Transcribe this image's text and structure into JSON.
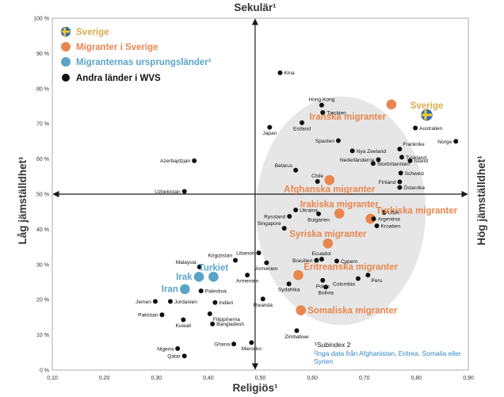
{
  "colors": {
    "sverige": "#d8ab4c",
    "migrants": "#e8864d",
    "origin": "#5ba4c8",
    "other": "#111111",
    "ellipse": "#e6e6e6",
    "axis": "#1a1a1a"
  },
  "legend": [
    {
      "label": "Sverige",
      "kind": "sverige",
      "color": "#d8ab4c"
    },
    {
      "label": "Migranter i Sverige",
      "kind": "migrant",
      "color": "#e8864d"
    },
    {
      "label": "Migranternas ursprungsländer²",
      "kind": "origin",
      "color": "#5ba4c8"
    },
    {
      "label": "Andra länder i WVS",
      "kind": "other",
      "color": "#111111"
    }
  ],
  "notes": {
    "subindex": "¹Subindex 2",
    "inga_data": "²Inga data från Afghanistan, Eritrea, Somalia eller Syrien"
  },
  "chart_data": {
    "type": "scatter",
    "title": "",
    "xlabel_top": "Sekulär¹",
    "xlabel_bottom": "Religiös¹",
    "ylabel_left": "Låg jämställdhet¹",
    "ylabel_right": "Hög jämställdhet¹",
    "xlim": [
      0.1,
      0.9
    ],
    "ylim": [
      0,
      100
    ],
    "x_ticks": [
      "0,10",
      "0,20",
      "0,30",
      "0,40",
      "0,50",
      "0,60",
      "0,70",
      "0,80",
      "0,90"
    ],
    "x_tick_values": [
      0.1,
      0.2,
      0.3,
      0.4,
      0.5,
      0.6,
      0.7,
      0.8,
      0.9
    ],
    "y_ticks": [
      "0 %",
      "10 %",
      "20 %",
      "30 %",
      "40 %",
      "50 %",
      "60 %",
      "70 %",
      "80 %",
      "90 %",
      "100 %"
    ],
    "y_tick_values": [
      0,
      10,
      20,
      30,
      40,
      50,
      60,
      70,
      80,
      90,
      100
    ],
    "axis_cross": {
      "x": 0.49,
      "y": 50
    },
    "series": [
      {
        "name": "Sverige",
        "points": [
          {
            "label": "Sverige",
            "x": 0.82,
            "y": 72.5,
            "label_pos": "above"
          }
        ]
      },
      {
        "name": "Migranter i Sverige",
        "points": [
          {
            "label": "Iranska migranter",
            "x": 0.752,
            "y": 75.5,
            "label_pos": "left-below"
          },
          {
            "label": "Afghanska migranter",
            "x": 0.633,
            "y": 54.0,
            "label_pos": "below"
          },
          {
            "label": "Irakiska migranter",
            "x": 0.652,
            "y": 44.5,
            "label_pos": "above"
          },
          {
            "label": "Turkiska migranter",
            "x": 0.712,
            "y": 43.0,
            "label_pos": "above-right"
          },
          {
            "label": "Syriska migranter",
            "x": 0.63,
            "y": 36.0,
            "label_pos": "above"
          },
          {
            "label": "Eritreanska migranter",
            "x": 0.573,
            "y": 27.0,
            "label_pos": "above-right"
          },
          {
            "label": "Somaliska migranter",
            "x": 0.578,
            "y": 17.0,
            "label_pos": "right"
          }
        ]
      },
      {
        "name": "Migranternas ursprungsländer",
        "points": [
          {
            "label": "Turkiet",
            "x": 0.41,
            "y": 26.5,
            "label_pos": "above"
          },
          {
            "label": "Irak",
            "x": 0.382,
            "y": 26.5,
            "label_pos": "left"
          },
          {
            "label": "Iran",
            "x": 0.355,
            "y": 23.0,
            "label_pos": "left"
          }
        ]
      },
      {
        "name": "Andra länder i WVS",
        "points": [
          {
            "label": "Kina",
            "x": 0.538,
            "y": 84.5,
            "label_pos": "right"
          },
          {
            "label": "Hong Kong",
            "x": 0.618,
            "y": 75.3,
            "label_pos": "above"
          },
          {
            "label": "Tjeckien",
            "x": 0.62,
            "y": 73.2,
            "label_pos": "right"
          },
          {
            "label": "Japan",
            "x": 0.518,
            "y": 69.0,
            "label_pos": "below"
          },
          {
            "label": "Estland",
            "x": 0.58,
            "y": 70.3,
            "label_pos": "below"
          },
          {
            "label": "Australien",
            "x": 0.798,
            "y": 68.8,
            "label_pos": "right"
          },
          {
            "label": "Spanien",
            "x": 0.65,
            "y": 65.2,
            "label_pos": "left"
          },
          {
            "label": "Nya Zeeland",
            "x": 0.677,
            "y": 62.3,
            "label_pos": "right"
          },
          {
            "label": "Frankrike",
            "x": 0.768,
            "y": 62.8,
            "label_pos": "above-right"
          },
          {
            "label": "Norge",
            "x": 0.876,
            "y": 65.0,
            "label_pos": "left"
          },
          {
            "label": "Tyskland",
            "x": 0.772,
            "y": 60.5,
            "label_pos": "right"
          },
          {
            "label": "Nederländerna",
            "x": 0.727,
            "y": 59.8,
            "label_pos": "left"
          },
          {
            "label": "Island",
            "x": 0.788,
            "y": 59.5,
            "label_pos": "right"
          },
          {
            "label": "Storbritannien",
            "x": 0.717,
            "y": 58.7,
            "label_pos": "right"
          },
          {
            "label": "Azerbajdzjan",
            "x": 0.373,
            "y": 59.5,
            "label_pos": "left"
          },
          {
            "label": "Belarus",
            "x": 0.568,
            "y": 56.8,
            "label_pos": "above-left"
          },
          {
            "label": "Schweiz",
            "x": 0.77,
            "y": 56.0,
            "label_pos": "right"
          },
          {
            "label": "Chile",
            "x": 0.61,
            "y": 53.6,
            "label_pos": "above"
          },
          {
            "label": "Finland",
            "x": 0.768,
            "y": 53.5,
            "label_pos": "left"
          },
          {
            "label": "Österrike",
            "x": 0.768,
            "y": 51.9,
            "label_pos": "right"
          },
          {
            "label": "Uzbekistan",
            "x": 0.354,
            "y": 50.8,
            "label_pos": "left"
          },
          {
            "label": "Ukraina",
            "x": 0.568,
            "y": 45.5,
            "label_pos": "right"
          },
          {
            "label": "Ryssland",
            "x": 0.556,
            "y": 43.7,
            "label_pos": "left"
          },
          {
            "label": "Bulgarien",
            "x": 0.612,
            "y": 44.4,
            "label_pos": "below"
          },
          {
            "label": "USA",
            "x": 0.738,
            "y": 44.8,
            "label_pos": "right"
          },
          {
            "label": "Argentina",
            "x": 0.718,
            "y": 43.0,
            "label_pos": "right"
          },
          {
            "label": "Kroatien",
            "x": 0.724,
            "y": 41.0,
            "label_pos": "right"
          },
          {
            "label": "Singapore",
            "x": 0.546,
            "y": 40.3,
            "label_pos": "above-left"
          },
          {
            "label": "Kirgizistan",
            "x": 0.452,
            "y": 31.2,
            "label_pos": "above-left"
          },
          {
            "label": "Libanon",
            "x": 0.497,
            "y": 33.3,
            "label_pos": "left"
          },
          {
            "label": "Malaysia",
            "x": 0.383,
            "y": 29.3,
            "label_pos": "above-left"
          },
          {
            "label": "Armenien",
            "x": 0.512,
            "y": 30.5,
            "label_pos": "below"
          },
          {
            "label": "Brasilien",
            "x": 0.608,
            "y": 31.2,
            "label_pos": "left"
          },
          {
            "label": "Ecuador",
            "x": 0.618,
            "y": 31.5,
            "label_pos": "above"
          },
          {
            "label": "Cypern",
            "x": 0.647,
            "y": 31.0,
            "label_pos": "right"
          },
          {
            "label": "Armenien",
            "x": 0.475,
            "y": 27.0,
            "label_pos": "below"
          },
          {
            "label": "Peru",
            "x": 0.707,
            "y": 27.0,
            "label_pos": "below-right"
          },
          {
            "label": "Palestina",
            "x": 0.386,
            "y": 22.5,
            "label_pos": "right"
          },
          {
            "label": "Polen",
            "x": 0.62,
            "y": 25.5,
            "label_pos": "below"
          },
          {
            "label": "Colombia",
            "x": 0.688,
            "y": 26.0,
            "label_pos": "below-left"
          },
          {
            "label": "Sydafrika",
            "x": 0.555,
            "y": 24.5,
            "label_pos": "below"
          },
          {
            "label": "Bolivia",
            "x": 0.626,
            "y": 23.6,
            "label_pos": "below"
          },
          {
            "label": "Jemen",
            "x": 0.298,
            "y": 19.5,
            "label_pos": "left"
          },
          {
            "label": "Jordanien",
            "x": 0.327,
            "y": 19.5,
            "label_pos": "right"
          },
          {
            "label": "Indien",
            "x": 0.413,
            "y": 19.2,
            "label_pos": "right"
          },
          {
            "label": "Rwanda",
            "x": 0.505,
            "y": 20.2,
            "label_pos": "below"
          },
          {
            "label": "Pakistan",
            "x": 0.311,
            "y": 15.7,
            "label_pos": "left"
          },
          {
            "label": "Filippinerna",
            "x": 0.403,
            "y": 16.0,
            "label_pos": "below-right"
          },
          {
            "label": "Kuwait",
            "x": 0.352,
            "y": 14.3,
            "label_pos": "below"
          },
          {
            "label": "Bangladesh",
            "x": 0.408,
            "y": 13.1,
            "label_pos": "right"
          },
          {
            "label": "Zimbabwe",
            "x": 0.57,
            "y": 11.2,
            "label_pos": "below"
          },
          {
            "label": "Ghana",
            "x": 0.449,
            "y": 7.4,
            "label_pos": "left"
          },
          {
            "label": "Marocko",
            "x": 0.483,
            "y": 7.8,
            "label_pos": "below"
          },
          {
            "label": "Nigeria",
            "x": 0.341,
            "y": 6.1,
            "label_pos": "left"
          },
          {
            "label": "Qatar",
            "x": 0.354,
            "y": 4.0,
            "label_pos": "left"
          }
        ]
      }
    ]
  }
}
